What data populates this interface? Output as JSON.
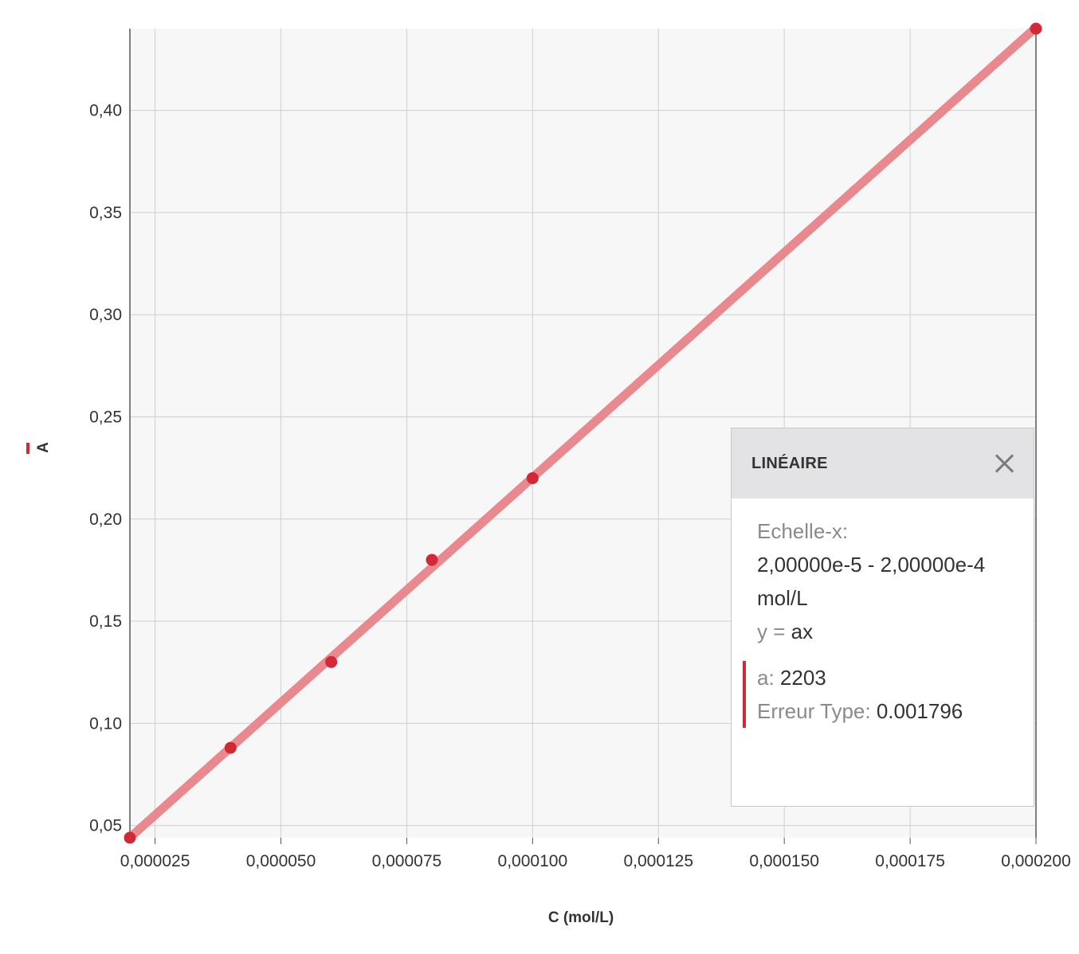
{
  "chart_data": {
    "type": "scatter",
    "xlabel": "C (mol/L)",
    "ylabel": "A",
    "xlim": [
      2e-05,
      0.0002
    ],
    "ylim": [
      0.044,
      0.44
    ],
    "x_ticks": [
      "0,000025",
      "0,000050",
      "0,000075",
      "0,000100",
      "0,000125",
      "0,000150",
      "0,000175",
      "0,000200"
    ],
    "y_ticks": [
      "0,05",
      "0,10",
      "0,15",
      "0,20",
      "0,25",
      "0,30",
      "0,35",
      "0,40"
    ],
    "x_tick_values": [
      2.5e-05,
      5e-05,
      7.5e-05,
      0.0001,
      0.000125,
      0.00015,
      0.000175,
      0.0002
    ],
    "y_tick_values": [
      0.05,
      0.1,
      0.15,
      0.2,
      0.25,
      0.3,
      0.35,
      0.4
    ],
    "grid": true,
    "series": [
      {
        "name": "A",
        "x": [
          2e-05,
          4e-05,
          6e-05,
          8e-05,
          0.0001,
          0.0002
        ],
        "y": [
          0.044,
          0.088,
          0.13,
          0.18,
          0.22,
          0.44
        ]
      }
    ],
    "fit": {
      "type": "linear",
      "a": 2203,
      "x_range": [
        2e-05,
        0.0002
      ]
    },
    "colors": {
      "points": "#d12a36",
      "fit_line": "#e8888f",
      "plot_bg": "#f7f7f7",
      "grid": "#cfcfcf"
    }
  },
  "fit_panel": {
    "title": "LINÉAIRE",
    "scale_label": "Echelle-x:",
    "scale_value": "2,00000e-5 - 2,00000e-4",
    "scale_unit": "mol/L",
    "eq_y": "y",
    "eq_eq": " = ",
    "eq_rhs": "ax",
    "param_a_label": "a:",
    "param_a_value": " 2203",
    "stderr_label": "Erreur Type:",
    "stderr_value": " 0.001796"
  }
}
